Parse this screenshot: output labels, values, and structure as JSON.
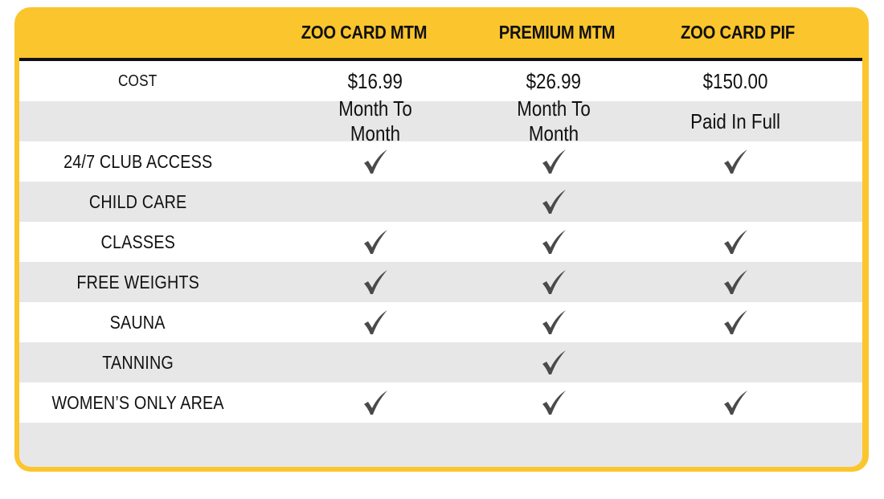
{
  "header": {
    "col1": "ZOO CARD MTM",
    "col2": "PREMIUM MTM",
    "col3": "ZOO CARD PIF"
  },
  "cost_row": {
    "label": "COST",
    "values": [
      "$16.99",
      "$26.99",
      "$150.00"
    ]
  },
  "term_row": {
    "label": "",
    "values": [
      "Month To Month",
      "Month To Month",
      "Paid In Full"
    ]
  },
  "features": [
    {
      "label": "24/7 CLUB ACCESS",
      "included": [
        true,
        true,
        true
      ]
    },
    {
      "label": "CHILD CARE",
      "included": [
        false,
        true,
        false
      ]
    },
    {
      "label": "CLASSES",
      "included": [
        true,
        true,
        true
      ]
    },
    {
      "label": "FREE WEIGHTS",
      "included": [
        true,
        true,
        true
      ]
    },
    {
      "label": "SAUNA",
      "included": [
        true,
        true,
        true
      ]
    },
    {
      "label": "TANNING",
      "included": [
        false,
        true,
        false
      ]
    },
    {
      "label": "WOMEN’S ONLY AREA",
      "included": [
        true,
        true,
        true
      ]
    }
  ],
  "colors": {
    "accent": "#fbc52d",
    "row_grey": "#e7e7e7",
    "text": "#111111",
    "check": "#4a4a4a"
  },
  "icons": {
    "check": "checkmark-icon"
  }
}
